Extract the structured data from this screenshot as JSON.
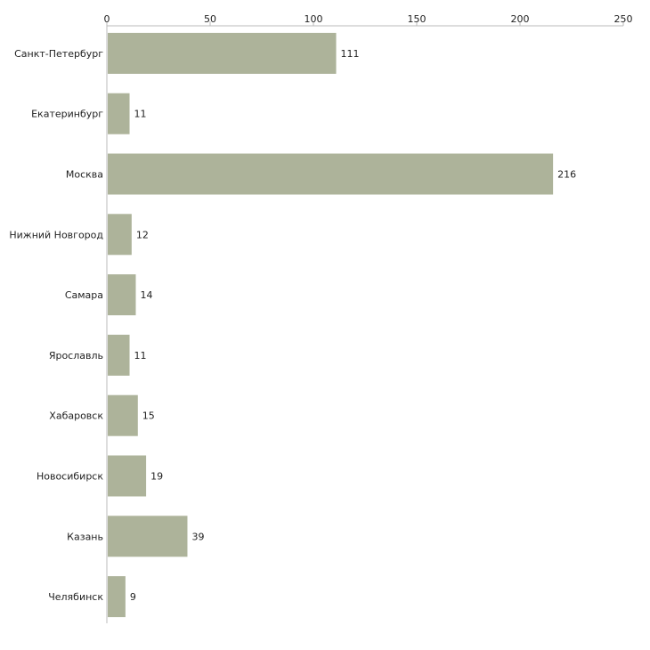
{
  "chart_data": {
    "type": "bar",
    "orientation": "horizontal",
    "title": "",
    "xlabel": "",
    "ylabel": "",
    "xlim": [
      0,
      250
    ],
    "ticks": [
      0,
      50,
      100,
      150,
      200,
      250
    ],
    "tick_labels": [
      "0",
      "50",
      "100",
      "150",
      "200",
      "250"
    ],
    "grid": false,
    "categories": [
      "Санкт-Петербург",
      "Екатеринбург",
      "Москва",
      "Нижний Новгород",
      "Самара",
      "Ярославль",
      "Хабаровск",
      "Новосибирск",
      "Казань",
      "Челябинск"
    ],
    "values": [
      111,
      11,
      216,
      12,
      14,
      11,
      15,
      19,
      39,
      9
    ],
    "value_labels": [
      "111",
      "11",
      "216",
      "12",
      "14",
      "11",
      "15",
      "19",
      "39",
      "9"
    ],
    "bar_color": "#adb39a",
    "axis_color": "#bbbbbb"
  }
}
